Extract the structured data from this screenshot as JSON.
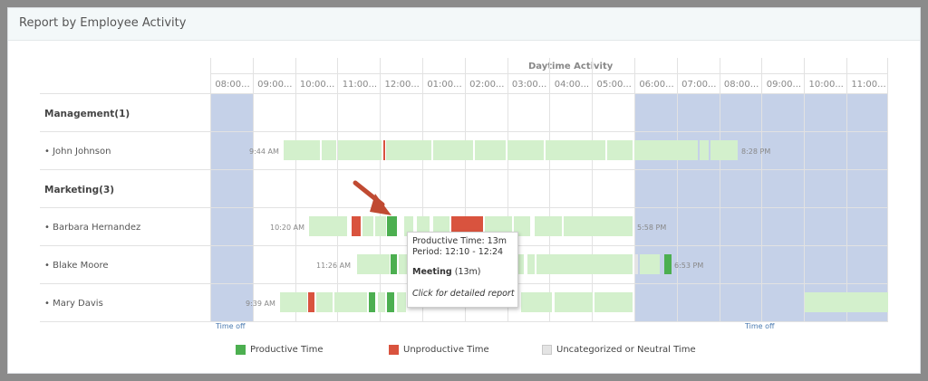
{
  "panel": {
    "title": "Report by Employee Activity"
  },
  "timeline": {
    "heading": "Daytime Activity",
    "hours": [
      "08:00...",
      "09:00...",
      "10:00...",
      "11:00...",
      "12:00...",
      "01:00...",
      "02:00...",
      "03:00...",
      "04:00...",
      "05:00...",
      "06:00...",
      "07:00...",
      "08:00...",
      "09:00...",
      "10:00...",
      "11:00..."
    ],
    "time_off_label": "Time off"
  },
  "rows": [
    {
      "type": "group",
      "label": "Management(1)"
    },
    {
      "type": "employee",
      "label": "• John Johnson",
      "start": "9:44 AM",
      "end": "8:28 PM"
    },
    {
      "type": "group",
      "label": "Marketing(3)"
    },
    {
      "type": "employee",
      "label": "• Barbara Hernandez",
      "start": "10:20 AM",
      "end": "5:58 PM"
    },
    {
      "type": "employee",
      "label": "• Blake Moore",
      "start": "11:26 AM",
      "end": "6:53 PM"
    },
    {
      "type": "employee",
      "label": "• Mary Davis",
      "start": "9:39 AM",
      "end": ""
    }
  ],
  "tooltip": {
    "productive": "Productive Time: 13m",
    "period": "Period: 12:10 - 12:24",
    "activity": "Meeting",
    "duration": "(13m)",
    "hint": "Click for detailed report"
  },
  "legend": [
    {
      "label": "Productive Time",
      "color": "#4caf50"
    },
    {
      "label": "Unproductive Time",
      "color": "#d9533e"
    },
    {
      "label": "Uncategorized or Neutral Time",
      "color": "#e4e4e4"
    }
  ],
  "colors": {
    "productive_light": "#d3f0cc",
    "productive_dark": "#4caf50",
    "unproductive": "#d9533e",
    "neutral": "#e4e4e4",
    "time_off": "#c5d1e8"
  }
}
